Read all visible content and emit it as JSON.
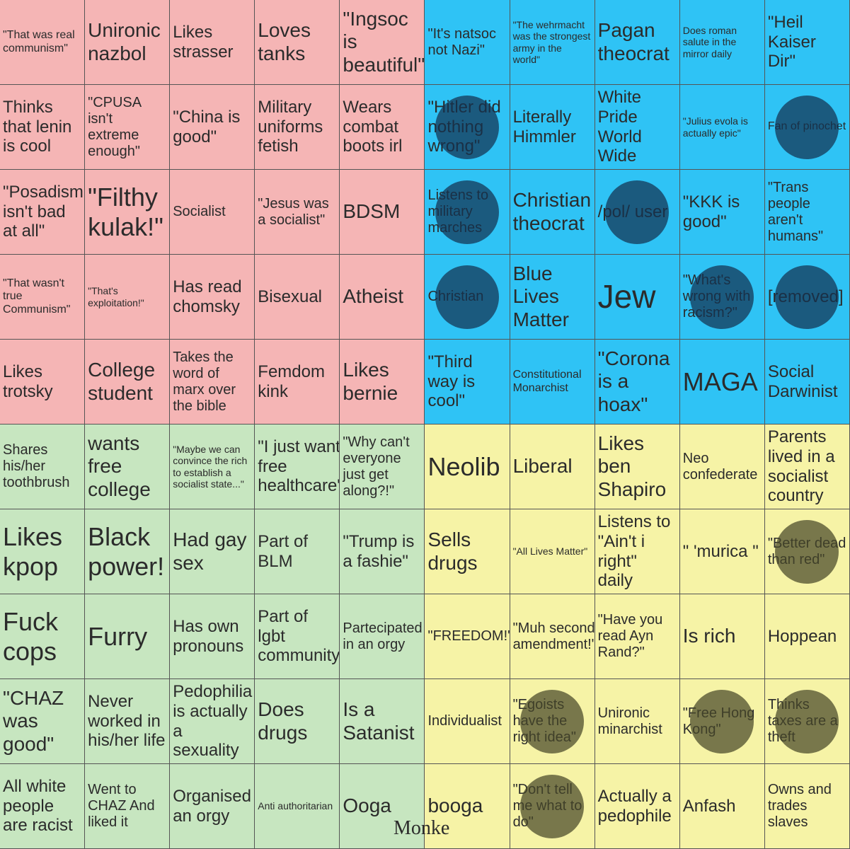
{
  "board": {
    "cells": [
      [
        {
          "text": "\"That was real communism\"",
          "color": "#f5b5b5",
          "marked": false
        },
        {
          "text": "Unironic nazbol",
          "color": "#f5b5b5",
          "marked": false
        },
        {
          "text": "Likes strasser",
          "color": "#f5b5b5",
          "marked": false
        },
        {
          "text": "Loves tanks",
          "color": "#f5b5b5",
          "marked": false
        },
        {
          "text": "\"Ingsoc is beautiful\"",
          "color": "#f5b5b5",
          "marked": false
        },
        {
          "text": "\"It's natsoc not Nazi\"",
          "color": "#2fc3f5",
          "marked": false
        },
        {
          "text": "\"The wehrmacht was the strongest army in the world\"",
          "color": "#2fc3f5",
          "marked": false
        },
        {
          "text": "Pagan theocrat",
          "color": "#2fc3f5",
          "marked": false
        },
        {
          "text": "Does roman salute in the mirror daily",
          "color": "#2fc3f5",
          "marked": false
        },
        {
          "text": "\"Heil Kaiser Dir\"",
          "color": "#2fc3f5",
          "marked": false
        }
      ],
      [
        {
          "text": "Thinks that lenin is cool",
          "color": "#f5b5b5",
          "marked": false
        },
        {
          "text": "\"CPUSA isn't extreme enough\"",
          "color": "#f5b5b5",
          "marked": false
        },
        {
          "text": "\"China is good\"",
          "color": "#f5b5b5",
          "marked": false
        },
        {
          "text": "Military uniforms fetish",
          "color": "#f5b5b5",
          "marked": false
        },
        {
          "text": "Wears combat boots irl",
          "color": "#f5b5b5",
          "marked": false
        },
        {
          "text": "\"Hitler did nothing wrong\"",
          "color": "#2fc3f5",
          "marked": true
        },
        {
          "text": "Literally Himmler",
          "color": "#2fc3f5",
          "marked": false
        },
        {
          "text": "White Pride World Wide",
          "color": "#2fc3f5",
          "marked": false
        },
        {
          "text": "\"Julius evola is actually epic\"",
          "color": "#2fc3f5",
          "marked": false
        },
        {
          "text": "Fan of pinochet",
          "color": "#2fc3f5",
          "marked": true
        }
      ],
      [
        {
          "text": "\"Posadism isn't bad at all\"",
          "color": "#f5b5b5",
          "marked": false
        },
        {
          "text": "\"Filthy kulak!\"",
          "color": "#f5b5b5",
          "marked": false
        },
        {
          "text": "Socialist",
          "color": "#f5b5b5",
          "marked": false
        },
        {
          "text": "\"Jesus was a socialist\"",
          "color": "#f5b5b5",
          "marked": false
        },
        {
          "text": "BDSM",
          "color": "#f5b5b5",
          "marked": false
        },
        {
          "text": "Listens to military marches",
          "color": "#2fc3f5",
          "marked": true
        },
        {
          "text": "Christian theocrat",
          "color": "#2fc3f5",
          "marked": false
        },
        {
          "text": "/pol/ user",
          "color": "#2fc3f5",
          "marked": true
        },
        {
          "text": "\"KKK is good\"",
          "color": "#2fc3f5",
          "marked": false
        },
        {
          "text": "\"Trans people aren't humans\"",
          "color": "#2fc3f5",
          "marked": false
        }
      ],
      [
        {
          "text": "\"That wasn't true Communism\"",
          "color": "#f5b5b5",
          "marked": false
        },
        {
          "text": "\"That's exploitation!\"",
          "color": "#f5b5b5",
          "marked": false
        },
        {
          "text": "Has read chomsky",
          "color": "#f5b5b5",
          "marked": false
        },
        {
          "text": "Bisexual",
          "color": "#f5b5b5",
          "marked": false
        },
        {
          "text": "Atheist",
          "color": "#f5b5b5",
          "marked": false
        },
        {
          "text": "Christian",
          "color": "#2fc3f5",
          "marked": true
        },
        {
          "text": "Blue Lives Matter",
          "color": "#2fc3f5",
          "marked": false
        },
        {
          "text": "Jew",
          "color": "#2fc3f5",
          "marked": false
        },
        {
          "text": "\"What's wrong with racism?\"",
          "color": "#2fc3f5",
          "marked": true
        },
        {
          "text": "[removed]",
          "color": "#2fc3f5",
          "marked": true
        }
      ],
      [
        {
          "text": "Likes trotsky",
          "color": "#f5b5b5",
          "marked": false
        },
        {
          "text": "College student",
          "color": "#f5b5b5",
          "marked": false
        },
        {
          "text": "Takes the word of marx over the bible",
          "color": "#f5b5b5",
          "marked": false
        },
        {
          "text": "Femdom kink",
          "color": "#f5b5b5",
          "marked": false
        },
        {
          "text": "Likes bernie",
          "color": "#f5b5b5",
          "marked": false
        },
        {
          "text": "\"Third way is cool\"",
          "color": "#2fc3f5",
          "marked": false
        },
        {
          "text": "Constitutional Monarchist",
          "color": "#2fc3f5",
          "marked": false
        },
        {
          "text": "\"Corona is a hoax\"",
          "color": "#2fc3f5",
          "marked": false
        },
        {
          "text": "MAGA",
          "color": "#2fc3f5",
          "marked": false
        },
        {
          "text": "Social Darwinist",
          "color": "#2fc3f5",
          "marked": false
        }
      ],
      [
        {
          "text": "Shares his/her toothbrush",
          "color": "#c7e6c0",
          "marked": false
        },
        {
          "text": "wants free college",
          "color": "#c7e6c0",
          "marked": false
        },
        {
          "text": "\"Maybe we can convince the rich to establish a socialist state...\"",
          "color": "#c7e6c0",
          "marked": false
        },
        {
          "text": "\"I just want free healthcare\"",
          "color": "#c7e6c0",
          "marked": false
        },
        {
          "text": "\"Why can't everyone just get along?!\"",
          "color": "#c7e6c0",
          "marked": false
        },
        {
          "text": "Neolib",
          "color": "#f6f3a6",
          "marked": false
        },
        {
          "text": "Liberal",
          "color": "#f6f3a6",
          "marked": false
        },
        {
          "text": "Likes ben Shapiro",
          "color": "#f6f3a6",
          "marked": false
        },
        {
          "text": "Neo confederate",
          "color": "#f6f3a6",
          "marked": false
        },
        {
          "text": "Parents lived in a socialist country",
          "color": "#f6f3a6",
          "marked": false
        }
      ],
      [
        {
          "text": "Likes kpop",
          "color": "#c7e6c0",
          "marked": false
        },
        {
          "text": "Black power!",
          "color": "#c7e6c0",
          "marked": false
        },
        {
          "text": "Had gay sex",
          "color": "#c7e6c0",
          "marked": false
        },
        {
          "text": "Part of BLM",
          "color": "#c7e6c0",
          "marked": false
        },
        {
          "text": "\"Trump is a fashie\"",
          "color": "#c7e6c0",
          "marked": false
        },
        {
          "text": "Sells drugs",
          "color": "#f6f3a6",
          "marked": false
        },
        {
          "text": "\"All Lives Matter\"",
          "color": "#f6f3a6",
          "marked": false
        },
        {
          "text": "Listens to \"Ain't i right\" daily",
          "color": "#f6f3a6",
          "marked": false
        },
        {
          "text": "\" 'murica \"",
          "color": "#f6f3a6",
          "marked": false
        },
        {
          "text": "\"Better dead than red\"",
          "color": "#f6f3a6",
          "marked": true
        }
      ],
      [
        {
          "text": "Fuck cops",
          "color": "#c7e6c0",
          "marked": false
        },
        {
          "text": "Furry",
          "color": "#c7e6c0",
          "marked": false
        },
        {
          "text": "Has own pronouns",
          "color": "#c7e6c0",
          "marked": false
        },
        {
          "text": "Part of lgbt community",
          "color": "#c7e6c0",
          "marked": false
        },
        {
          "text": "Partecipated in an orgy",
          "color": "#c7e6c0",
          "marked": false
        },
        {
          "text": "\"FREEDOM!\"",
          "color": "#f6f3a6",
          "marked": false
        },
        {
          "text": "\"Muh second amendment!\"",
          "color": "#f6f3a6",
          "marked": false
        },
        {
          "text": "\"Have you read Ayn Rand?\"",
          "color": "#f6f3a6",
          "marked": false
        },
        {
          "text": "Is rich",
          "color": "#f6f3a6",
          "marked": false
        },
        {
          "text": "Hoppean",
          "color": "#f6f3a6",
          "marked": false
        }
      ],
      [
        {
          "text": "\"CHAZ was good\"",
          "color": "#c7e6c0",
          "marked": false
        },
        {
          "text": "Never worked in his/her life",
          "color": "#c7e6c0",
          "marked": false
        },
        {
          "text": "Pedophilia is actually a sexuality",
          "color": "#c7e6c0",
          "marked": false
        },
        {
          "text": "Does drugs",
          "color": "#c7e6c0",
          "marked": false
        },
        {
          "text": "Is a Satanist",
          "color": "#c7e6c0",
          "marked": false
        },
        {
          "text": "Individualist",
          "color": "#f6f3a6",
          "marked": false
        },
        {
          "text": "\"Egoists have the right idea\"",
          "color": "#f6f3a6",
          "marked": true
        },
        {
          "text": "Unironic minarchist",
          "color": "#f6f3a6",
          "marked": false
        },
        {
          "text": "\"Free Hong Kong\"",
          "color": "#f6f3a6",
          "marked": true
        },
        {
          "text": "Thinks taxes are a theft",
          "color": "#f6f3a6",
          "marked": true
        }
      ],
      [
        {
          "text": "All white people are racist",
          "color": "#c7e6c0",
          "marked": false
        },
        {
          "text": "Went to CHAZ And liked it",
          "color": "#c7e6c0",
          "marked": false
        },
        {
          "text": "Organised an orgy",
          "color": "#c7e6c0",
          "marked": false
        },
        {
          "text": "Anti authoritarian",
          "color": "#c7e6c0",
          "marked": false
        },
        {
          "text": "Ooga",
          "color": "#c7e6c0",
          "marked": false
        },
        {
          "text": "booga",
          "color": "#f6f3a6",
          "marked": false
        },
        {
          "text": "\"Don't tell me what to do\"",
          "color": "#f6f3a6",
          "marked": true
        },
        {
          "text": "Actually a pedophile",
          "color": "#f6f3a6",
          "marked": false
        },
        {
          "text": "Anfash",
          "color": "#f6f3a6",
          "marked": false
        },
        {
          "text": "Owns and trades slaves",
          "color": "#f6f3a6",
          "marked": false
        }
      ]
    ],
    "overflow_text": "Monke"
  }
}
